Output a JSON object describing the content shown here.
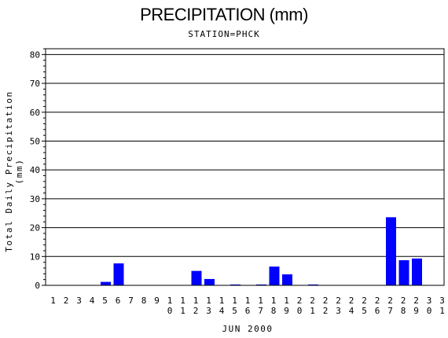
{
  "chart_data": {
    "type": "bar",
    "title": "PRECIPITATION (mm)",
    "subtitle": "STATION=PHCK",
    "xlabel": "JUN 2000",
    "ylabel": "Total Daily Precipitation (mm)",
    "ylim": [
      0,
      82
    ],
    "yticks": [
      0,
      10,
      20,
      30,
      40,
      50,
      60,
      70,
      80
    ],
    "grid": true,
    "bar_color": "#0000ff",
    "categories": [
      "1",
      "2",
      "3",
      "4",
      "5",
      "6",
      "7",
      "8",
      "9",
      "10",
      "11",
      "12",
      "13",
      "14",
      "15",
      "16",
      "17",
      "18",
      "19",
      "20",
      "21",
      "22",
      "23",
      "24",
      "25",
      "26",
      "27",
      "28",
      "29",
      "30",
      "31"
    ],
    "values": [
      0,
      0,
      0,
      0,
      1.2,
      7.6,
      0,
      0,
      0,
      0,
      0,
      5.0,
      2.2,
      0,
      0.3,
      0,
      0.3,
      6.5,
      3.8,
      0,
      0.3,
      0,
      0,
      0,
      0,
      0,
      23.6,
      8.7,
      9.3,
      0,
      0
    ]
  }
}
